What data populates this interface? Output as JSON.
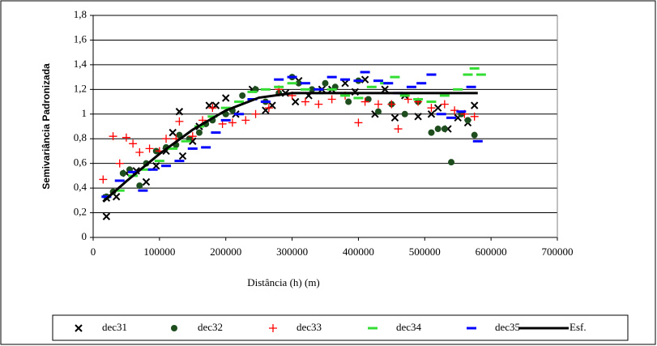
{
  "chart_data": {
    "type": "scatter",
    "xlabel": "Distância (h)     (m)",
    "ylabel": "Semivariância Padronizada",
    "xlim": [
      0,
      700000
    ],
    "xticks": [
      0,
      100000,
      200000,
      300000,
      400000,
      500000,
      600000,
      700000
    ],
    "ylim": [
      0,
      1.8
    ],
    "yticks": [
      0,
      {
        "value": 0.2,
        "label": "0,2"
      },
      {
        "value": 0.4,
        "label": "0,4"
      },
      {
        "value": 0.6,
        "label": "0,6"
      },
      {
        "value": 0.8,
        "label": "0,8"
      },
      {
        "value": 1,
        "label": "1"
      },
      {
        "value": 1.2,
        "label": "1,2"
      },
      {
        "value": 1.4,
        "label": "1,4"
      },
      {
        "value": 1.6,
        "label": "1,6"
      },
      {
        "value": 1.8,
        "label": "1,8"
      }
    ],
    "grid": true,
    "legend": "bottom",
    "series": [
      {
        "name": "dec31",
        "color": "#000000",
        "marker": "x",
        "x": [
          20000,
          20000,
          35000,
          50000,
          65000,
          80000,
          95000,
          110000,
          120000,
          130000,
          135000,
          150000,
          160000,
          175000,
          185000,
          200000,
          215000,
          240000,
          260000,
          270000,
          290000,
          305000,
          310000,
          325000,
          345000,
          360000,
          380000,
          395000,
          410000,
          425000,
          440000,
          455000,
          470000,
          490000,
          510000,
          520000,
          535000,
          550000,
          565000,
          575000
        ],
        "values": [
          0.17,
          0.32,
          0.33,
          0.52,
          0.54,
          0.45,
          0.58,
          0.7,
          0.85,
          1.02,
          0.66,
          0.78,
          0.9,
          1.07,
          1.07,
          1.13,
          1.0,
          1.2,
          1.03,
          1.07,
          1.17,
          1.1,
          1.27,
          1.15,
          1.2,
          1.2,
          1.25,
          1.18,
          1.28,
          1.0,
          1.2,
          0.97,
          1.15,
          0.98,
          1.0,
          1.05,
          0.88,
          0.97,
          0.93,
          1.07
        ]
      },
      {
        "name": "dec32",
        "color": "#1e4d1e",
        "marker": "circle",
        "x": [
          20000,
          30000,
          45000,
          55000,
          70000,
          80000,
          95000,
          110000,
          125000,
          130000,
          145000,
          160000,
          170000,
          180000,
          200000,
          210000,
          225000,
          245000,
          260000,
          280000,
          300000,
          310000,
          330000,
          350000,
          365000,
          385000,
          400000,
          415000,
          430000,
          450000,
          470000,
          490000,
          510000,
          520000,
          530000,
          540000,
          555000,
          565000,
          575000
        ],
        "values": [
          0.33,
          0.37,
          0.52,
          0.55,
          0.42,
          0.6,
          0.7,
          0.73,
          0.75,
          0.83,
          0.8,
          0.85,
          0.92,
          0.95,
          1.0,
          1.03,
          1.15,
          1.2,
          1.1,
          1.17,
          1.3,
          1.25,
          1.2,
          1.25,
          1.22,
          1.1,
          1.27,
          1.12,
          1.02,
          1.08,
          1.0,
          1.1,
          0.85,
          0.88,
          0.88,
          0.61,
          1.0,
          0.95,
          0.83
        ]
      },
      {
        "name": "dec33",
        "color": "#ff0000",
        "marker": "plus",
        "x": [
          15000,
          30000,
          40000,
          50000,
          60000,
          70000,
          85000,
          100000,
          110000,
          125000,
          130000,
          150000,
          165000,
          180000,
          195000,
          210000,
          230000,
          245000,
          265000,
          280000,
          300000,
          320000,
          340000,
          360000,
          380000,
          400000,
          410000,
          430000,
          450000,
          460000,
          475000,
          490000,
          510000,
          530000,
          545000,
          560000,
          575000
        ],
        "values": [
          0.47,
          0.82,
          0.6,
          0.81,
          0.76,
          0.69,
          0.72,
          0.7,
          0.8,
          0.8,
          0.94,
          0.82,
          0.95,
          1.05,
          0.92,
          0.93,
          0.95,
          1.0,
          1.05,
          1.2,
          1.15,
          1.1,
          1.08,
          1.12,
          1.15,
          0.93,
          1.1,
          1.08,
          1.08,
          0.88,
          1.12,
          1.1,
          1.05,
          1.08,
          1.03,
          1.0,
          0.98
        ]
      },
      {
        "name": "dec34",
        "color": "#33dd33",
        "marker": "dash",
        "x": [
          20000,
          40000,
          60000,
          80000,
          100000,
          120000,
          140000,
          160000,
          180000,
          200000,
          220000,
          240000,
          260000,
          280000,
          300000,
          320000,
          340000,
          360000,
          380000,
          400000,
          420000,
          440000,
          455000,
          470000,
          490000,
          510000,
          530000,
          550000,
          565000,
          575000,
          585000
        ],
        "values": [
          0.33,
          0.38,
          0.5,
          0.55,
          0.62,
          0.72,
          0.78,
          0.9,
          0.98,
          1.05,
          1.1,
          1.18,
          1.2,
          1.22,
          1.25,
          1.2,
          1.17,
          1.2,
          1.15,
          1.13,
          1.22,
          1.25,
          1.3,
          1.15,
          1.12,
          1.1,
          1.15,
          1.2,
          1.32,
          1.37,
          1.32
        ]
      },
      {
        "name": "dec35",
        "color": "#0000ff",
        "marker": "dash",
        "x": [
          20000,
          40000,
          60000,
          75000,
          90000,
          110000,
          130000,
          150000,
          170000,
          185000,
          200000,
          220000,
          240000,
          260000,
          280000,
          300000,
          320000,
          340000,
          360000,
          380000,
          400000,
          410000,
          430000,
          445000,
          460000,
          480000,
          495000,
          510000,
          525000,
          540000,
          555000,
          570000,
          580000
        ],
        "values": [
          0.33,
          0.46,
          0.53,
          0.38,
          0.55,
          0.58,
          0.62,
          0.72,
          0.73,
          0.85,
          0.95,
          1.0,
          1.12,
          1.1,
          1.28,
          1.3,
          1.25,
          1.2,
          1.3,
          1.28,
          1.27,
          1.34,
          1.27,
          1.25,
          1.17,
          1.22,
          1.25,
          1.32,
          1.0,
          0.97,
          1.02,
          1.22,
          0.78
        ]
      },
      {
        "name": "Esf.",
        "color": "#000000",
        "marker": "line",
        "x": [
          15000,
          50000,
          100000,
          150000,
          200000,
          250000,
          300000,
          350000,
          400000,
          450000,
          500000,
          580000
        ],
        "values": [
          0.29,
          0.455,
          0.677,
          0.873,
          1.029,
          1.133,
          1.17,
          1.17,
          1.17,
          1.17,
          1.17,
          1.17
        ]
      }
    ]
  }
}
